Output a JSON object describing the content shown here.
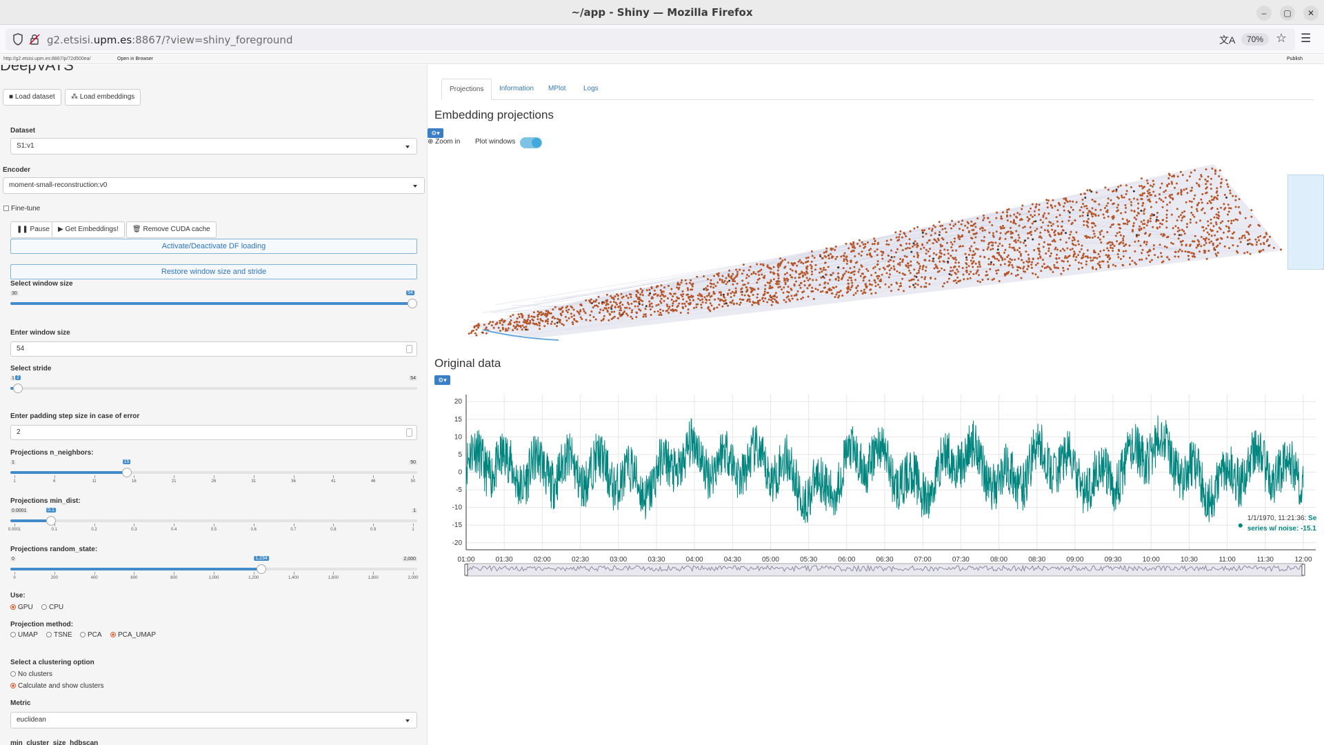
{
  "browser": {
    "window_title": "~/app - Shiny — Mozilla Firefox",
    "url_prefix": "g2.etsisi.",
    "url_domain": "upm.es",
    "url_suffix": ":8867/?view=shiny_foreground",
    "zoom": "70%"
  },
  "viewer": {
    "small_url": "http://g2.etsisi.upm.es:8867/p/72d500ea/",
    "open_in_browser": "Open in Browser",
    "publish": "Publish"
  },
  "sidebar": {
    "app_title": "DeepVATS",
    "load_dataset": "Load dataset",
    "load_embeddings": "Load embeddings",
    "dataset_label": "Dataset",
    "dataset_value": "S1:v1",
    "encoder_label": "Encoder",
    "encoder_value": "moment-small-reconstruction:v0",
    "finetune_label": "Fine-tune",
    "pause": "Pause",
    "get_embeddings": "Get Embeddings!",
    "remove_cuda": "Remove CUDA cache",
    "activate_df": "Activate/Deactivate DF loading",
    "restore_window": "Restore window size and stride",
    "window_size_label": "Select window size",
    "window_size_slider": {
      "min": "30",
      "max": "54",
      "value": 54,
      "lo": 30,
      "hi": 54
    },
    "enter_window_label": "Enter window size",
    "enter_window_value": "54",
    "stride_label": "Select stride",
    "stride_slider": {
      "min": "1",
      "max": "54",
      "value": 2,
      "value_label": "2",
      "lo": 1,
      "hi": 54
    },
    "padding_label": "Enter padding step size in case of error",
    "padding_value": "2",
    "neighbors_label": "Projections n_neighbors:",
    "neighbors_slider": {
      "min": "1",
      "max": "50",
      "value": 15,
      "value_label": "15",
      "lo": 1,
      "hi": 50,
      "ticks": [
        "1",
        "6",
        "11",
        "16",
        "21",
        "26",
        "31",
        "36",
        "41",
        "46",
        "50"
      ]
    },
    "mindist_label": "Projections min_dist:",
    "mindist_slider": {
      "min": "0.0001",
      "max": "1",
      "value": 0.1,
      "value_label": "0.1",
      "lo": 0,
      "hi": 1,
      "ticks": [
        "0.0001",
        "0.1",
        "0.2",
        "0.3",
        "0.4",
        "0.5",
        "0.6",
        "0.7",
        "0.8",
        "0.9",
        "1"
      ]
    },
    "random_label": "Projections random_state:",
    "random_slider": {
      "min": "0",
      "max": "2,000",
      "value": 1234,
      "value_label": "1,234",
      "lo": 0,
      "hi": 2000,
      "ticks": [
        "0",
        "200",
        "400",
        "600",
        "800",
        "1,000",
        "1,200",
        "1,400",
        "1,600",
        "1,800",
        "2,000"
      ]
    },
    "use_label": "Use:",
    "use_options": [
      "GPU",
      "CPU"
    ],
    "use_selected": "GPU",
    "projection_label": "Projection method:",
    "projection_options": [
      "UMAP",
      "TSNE",
      "PCA",
      "PCA_UMAP"
    ],
    "projection_selected": "PCA_UMAP",
    "clustering_label": "Select a clustering option",
    "clustering_options": [
      "No clusters",
      "Calculate and show clusters"
    ],
    "clustering_selected": "Calculate and show clusters",
    "metric_label": "Metric",
    "metric_value": "euclidean",
    "hdbscan_label": "min_cluster_size_hdbscan"
  },
  "main": {
    "tabs": [
      "Projections",
      "Information",
      "MPlot",
      "Logs"
    ],
    "active_tab": "Projections",
    "embedding_title": "Embedding projections",
    "zoom_in": "Zoom in",
    "plot_windows": "Plot windows",
    "plot_windows_on": true,
    "original_title": "Original data",
    "tooltip_line1": "1/1/1970, 11:21:36: ",
    "tooltip_series": "Se",
    "tooltip_line2_name": "series w/ noise: ",
    "tooltip_line2_value": "-15.1",
    "colors": {
      "scatter": "#b5562a",
      "series": "#00847e",
      "accent": "#428bca"
    }
  },
  "chart_data": [
    {
      "type": "scatter",
      "title": "Embedding projections",
      "description_shape": "dense cloud of projected windows forming a wedge, with connecting path lines",
      "x": [
        0.05,
        0.15,
        0.25,
        0.35,
        0.45,
        0.55,
        0.65,
        0.75,
        0.85,
        0.95
      ],
      "y": [
        0.05,
        0.12,
        0.2,
        0.28,
        0.36,
        0.45,
        0.55,
        0.65,
        0.75,
        0.85
      ],
      "xlim": [
        0,
        1
      ],
      "ylim": [
        0,
        1
      ],
      "grid": false
    },
    {
      "type": "line",
      "title": "Original data",
      "x_ticks": [
        "01:00",
        "01:30",
        "02:00",
        "02:30",
        "03:00",
        "03:30",
        "04:00",
        "04:30",
        "05:00",
        "05:30",
        "06:00",
        "06:30",
        "07:00",
        "07:30",
        "08:00",
        "08:30",
        "09:00",
        "09:30",
        "10:00",
        "10:30",
        "11:00",
        "11:30",
        "12:00"
      ],
      "y_ticks": [
        "20",
        "15",
        "10",
        "5",
        "0",
        "-5",
        "-10",
        "-15",
        "-20"
      ],
      "ylim": [
        -22,
        22
      ],
      "grid": true,
      "series": [
        {
          "name": "series w/ noise",
          "x": [
            "01:00",
            "01:30",
            "02:00",
            "02:30",
            "03:00",
            "03:30",
            "04:00",
            "04:30",
            "05:00",
            "05:30",
            "06:00",
            "06:30",
            "07:00",
            "07:30",
            "08:00",
            "08:30",
            "09:00",
            "09:30",
            "10:00",
            "10:30",
            "11:00",
            "11:30",
            "12:00"
          ],
          "values": [
            2,
            -1,
            4,
            -3,
            1,
            -2,
            3,
            6,
            -1,
            -4,
            2,
            1,
            -2,
            3,
            -1,
            4,
            -3,
            2,
            5,
            1,
            -2,
            0,
            3
          ]
        }
      ]
    }
  ]
}
